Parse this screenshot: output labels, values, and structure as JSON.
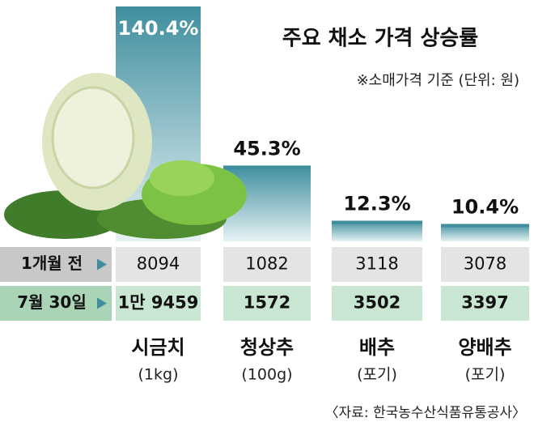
{
  "chart_data": {
    "type": "bar",
    "title": "주요 채소 가격 상승률",
    "subtitle": "※소매가격 기준 (단위: 원)",
    "categories": [
      "시금치",
      "청상추",
      "배추",
      "양배추"
    ],
    "units": [
      "(1kg)",
      "(100g)",
      "(포기)",
      "(포기)"
    ],
    "values": [
      140.4,
      45.3,
      12.3,
      10.4
    ],
    "value_labels": [
      "140.4%",
      "45.3%",
      "12.3%",
      "10.4%"
    ],
    "color": "#3f8e9e",
    "rows": [
      {
        "label": "1개월 전",
        "values": [
          8094,
          1082,
          3118,
          3078
        ]
      },
      {
        "label": "7월 30일",
        "values": [
          19459,
          1572,
          3502,
          3397
        ],
        "value_labels": [
          "1만 9459",
          "1572",
          "3502",
          "3397"
        ]
      }
    ],
    "source": "〈자료: 한국농수산식품유통공사〉"
  }
}
